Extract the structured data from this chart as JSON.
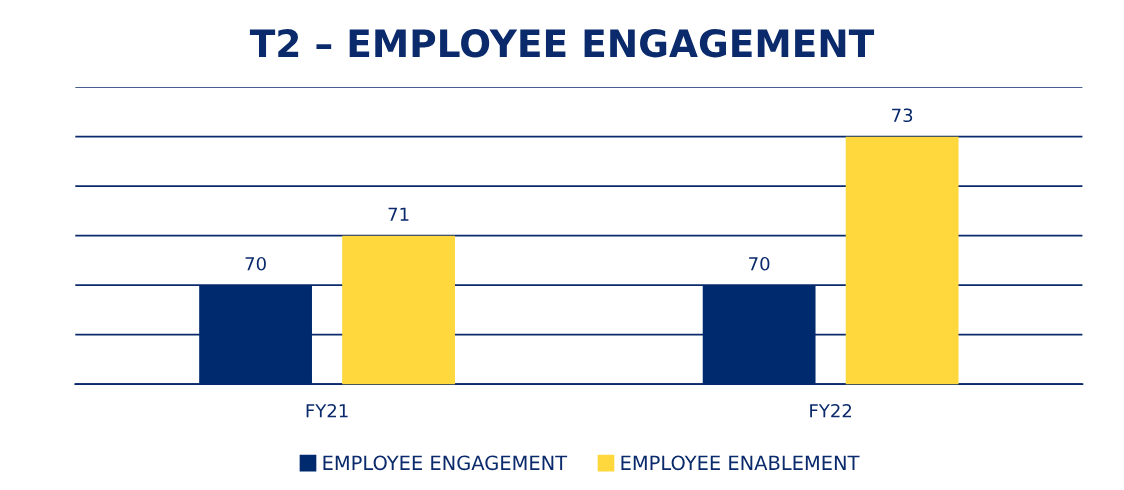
{
  "chart_data": {
    "type": "bar",
    "title": "T2 – EMPLOYEE ENGAGEMENT",
    "categories": [
      "FY21",
      "FY22"
    ],
    "series": [
      {
        "name": "EMPLOYEE ENGAGEMENT",
        "color": "#002a6e",
        "values": [
          70,
          70
        ]
      },
      {
        "name": "EMPLOYEE ENABLEMENT",
        "color": "#ffd83d",
        "values": [
          71,
          73
        ]
      }
    ],
    "ylim": [
      68,
      74
    ],
    "yticks": [
      {
        "value": 68,
        "label": null
      },
      {
        "value": 69,
        "label": null
      },
      {
        "value": 70,
        "label": null
      },
      {
        "value": 71,
        "label": null
      },
      {
        "value": 72,
        "label": null
      },
      {
        "value": 73,
        "label": null
      },
      {
        "value": 74,
        "label": null
      }
    ],
    "tick_labels": "x",
    "grid": "y",
    "legend": "bottom",
    "data_labels": true
  }
}
